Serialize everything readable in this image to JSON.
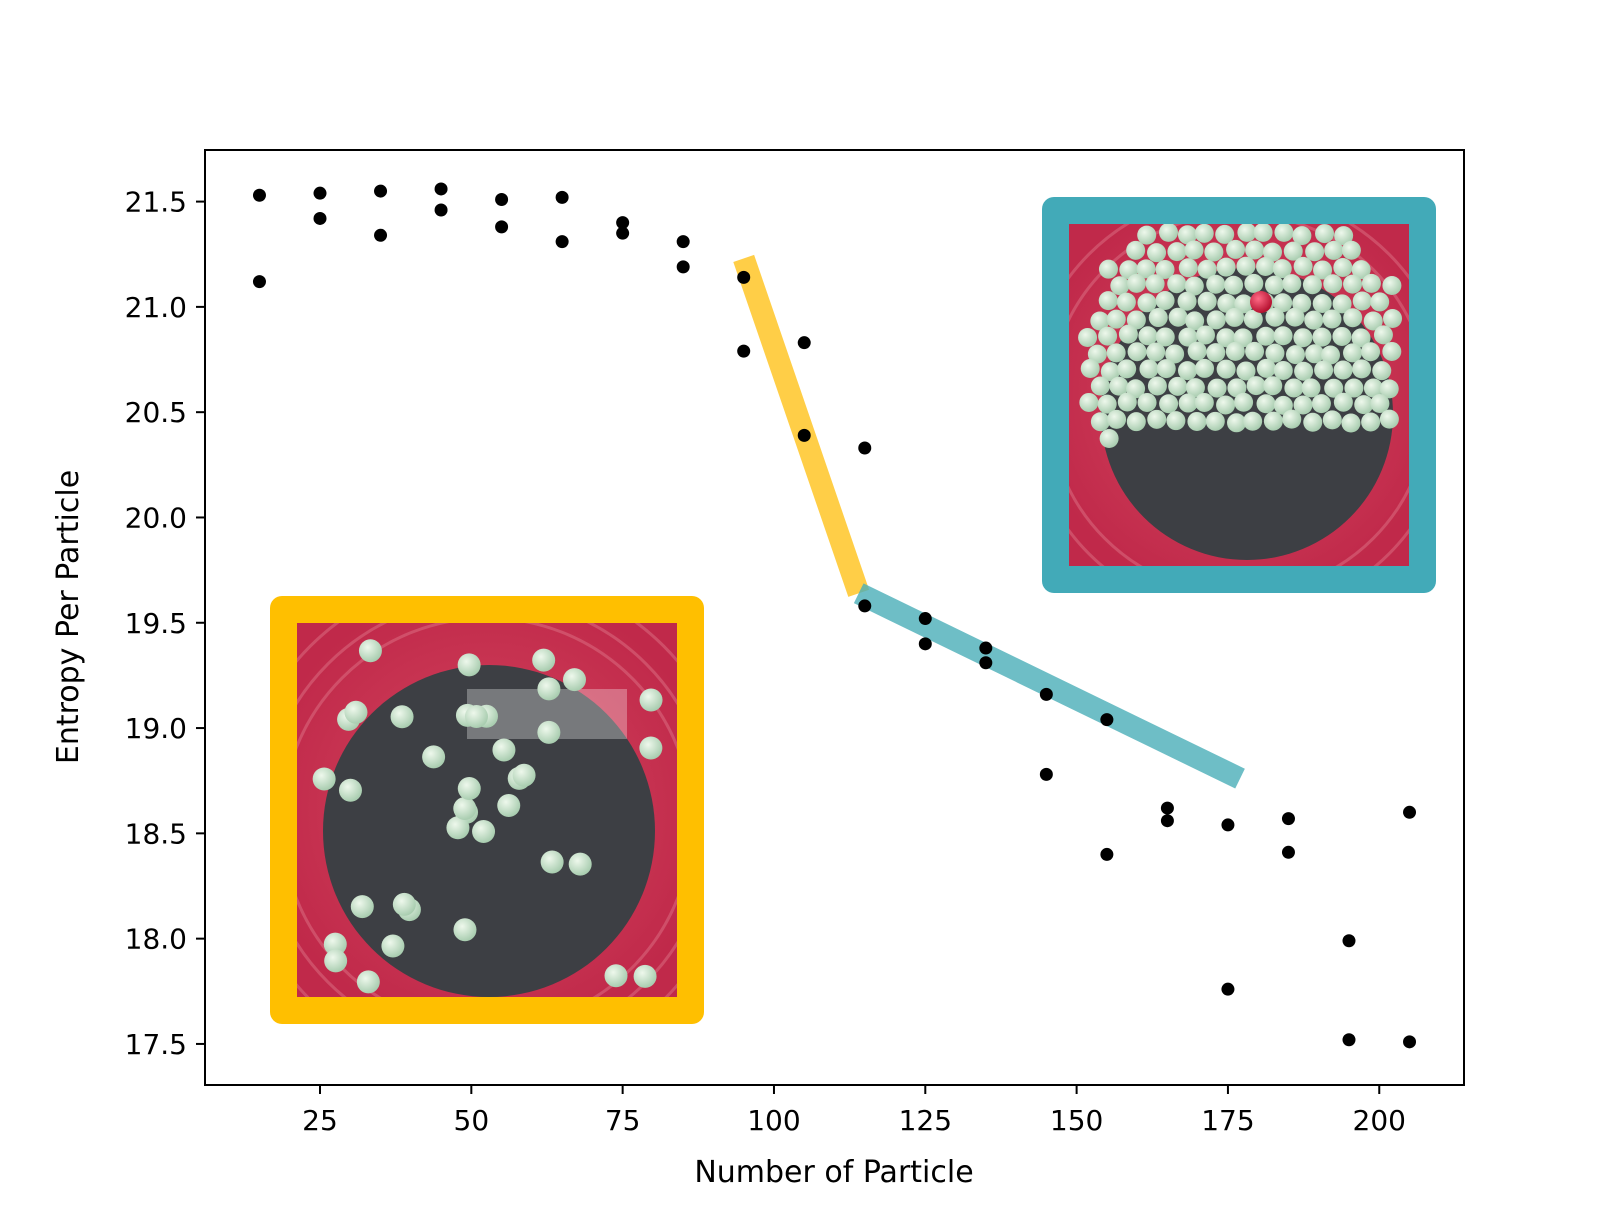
{
  "chart_data": {
    "type": "scatter",
    "title": "",
    "xlabel": "Number of Particle",
    "ylabel": "Entropy Per Particle",
    "xlim": [
      6.0,
      214.0
    ],
    "ylim": [
      17.305,
      21.745
    ],
    "xticks": [
      25,
      50,
      75,
      100,
      125,
      150,
      175,
      200
    ],
    "xtick_labels": [
      "25",
      "50",
      "75",
      "100",
      "125",
      "150",
      "175",
      "200"
    ],
    "yticks": [
      17.5,
      18.0,
      18.5,
      19.0,
      19.5,
      20.0,
      20.5,
      21.0,
      21.5
    ],
    "ytick_labels": [
      "17.5",
      "18.0",
      "18.5",
      "19.0",
      "19.5",
      "20.0",
      "20.5",
      "21.0",
      "21.5"
    ],
    "grid": false,
    "marker_color": "#000000",
    "points": [
      {
        "x": 15,
        "y": 21.53
      },
      {
        "x": 15,
        "y": 21.12
      },
      {
        "x": 25,
        "y": 21.54
      },
      {
        "x": 25,
        "y": 21.42
      },
      {
        "x": 35,
        "y": 21.55
      },
      {
        "x": 35,
        "y": 21.34
      },
      {
        "x": 45,
        "y": 21.56
      },
      {
        "x": 45,
        "y": 21.46
      },
      {
        "x": 55,
        "y": 21.51
      },
      {
        "x": 55,
        "y": 21.38
      },
      {
        "x": 65,
        "y": 21.52
      },
      {
        "x": 65,
        "y": 21.31
      },
      {
        "x": 75,
        "y": 21.4
      },
      {
        "x": 75,
        "y": 21.35
      },
      {
        "x": 85,
        "y": 21.31
      },
      {
        "x": 85,
        "y": 21.19
      },
      {
        "x": 95,
        "y": 21.14
      },
      {
        "x": 95,
        "y": 20.79
      },
      {
        "x": 105,
        "y": 20.83
      },
      {
        "x": 105,
        "y": 20.39
      },
      {
        "x": 115,
        "y": 20.33
      },
      {
        "x": 115,
        "y": 19.58
      },
      {
        "x": 125,
        "y": 19.52
      },
      {
        "x": 125,
        "y": 19.4
      },
      {
        "x": 135,
        "y": 19.38
      },
      {
        "x": 135,
        "y": 19.31
      },
      {
        "x": 145,
        "y": 19.16
      },
      {
        "x": 145,
        "y": 18.78
      },
      {
        "x": 155,
        "y": 19.04
      },
      {
        "x": 155,
        "y": 18.4
      },
      {
        "x": 165,
        "y": 18.62
      },
      {
        "x": 165,
        "y": 18.56
      },
      {
        "x": 175,
        "y": 18.54
      },
      {
        "x": 175,
        "y": 17.76
      },
      {
        "x": 185,
        "y": 18.57
      },
      {
        "x": 185,
        "y": 18.41
      },
      {
        "x": 195,
        "y": 17.99
      },
      {
        "x": 195,
        "y": 17.52
      },
      {
        "x": 205,
        "y": 18.6
      },
      {
        "x": 205,
        "y": 17.51
      }
    ],
    "trend_lines": [
      {
        "name": "steep-drop",
        "color": "#ffc21a",
        "x": [
          95,
          114
        ],
        "y": [
          21.23,
          19.64
        ]
      },
      {
        "name": "gentle-decline",
        "color": "#4aafb8",
        "x": [
          114,
          177
        ],
        "y": [
          19.64,
          18.76
        ]
      }
    ],
    "insets": [
      {
        "name": "sparse-particles-photo",
        "frame_color": "#ffbf00",
        "placement": "lower-left",
        "particle_count": 38
      },
      {
        "name": "dense-particles-photo",
        "frame_color": "#42aab8",
        "placement": "upper-right",
        "particle_count": 180
      }
    ]
  }
}
